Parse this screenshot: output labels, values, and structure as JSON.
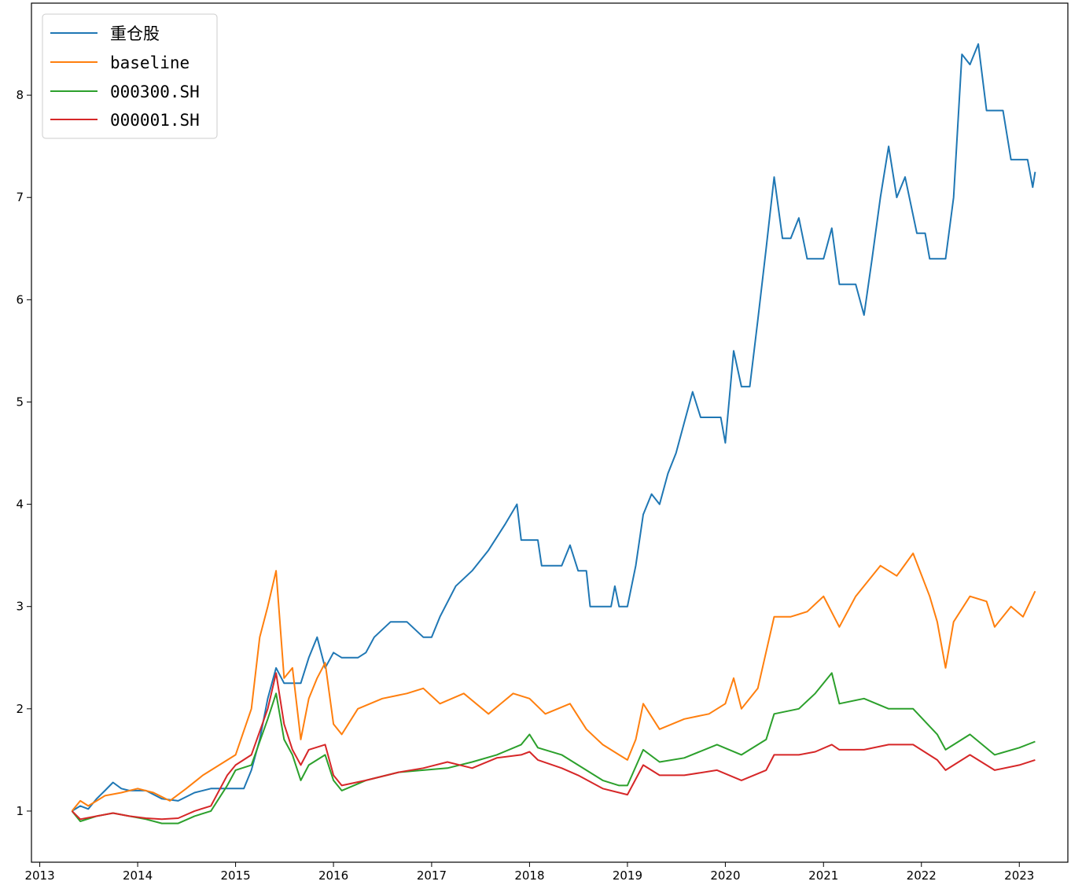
{
  "chart_data": {
    "type": "line",
    "title": "",
    "xlabel": "",
    "ylabel": "",
    "x_axis": {
      "type": "date",
      "range": [
        "2012-12-01",
        "2023-07-01"
      ],
      "ticks": [
        "2013",
        "2014",
        "2015",
        "2016",
        "2017",
        "2018",
        "2019",
        "2020",
        "2021",
        "2022",
        "2023"
      ]
    },
    "y_axis": {
      "range": [
        0.5,
        8.9
      ],
      "ticks": [
        1,
        2,
        3,
        4,
        5,
        6,
        7,
        8
      ]
    },
    "grid": false,
    "legend_position": "top-left",
    "series": [
      {
        "name": "重仓股",
        "color": "#1f77b4",
        "points": [
          [
            "2013-05-01",
            1.0
          ],
          [
            "2013-06-01",
            1.05
          ],
          [
            "2013-07-01",
            1.02
          ],
          [
            "2013-08-01",
            1.12
          ],
          [
            "2013-09-01",
            1.2
          ],
          [
            "2013-10-01",
            1.28
          ],
          [
            "2013-11-01",
            1.22
          ],
          [
            "2013-12-01",
            1.2
          ],
          [
            "2014-02-01",
            1.2
          ],
          [
            "2014-04-01",
            1.12
          ],
          [
            "2014-06-01",
            1.1
          ],
          [
            "2014-08-01",
            1.18
          ],
          [
            "2014-10-01",
            1.22
          ],
          [
            "2014-12-01",
            1.22
          ],
          [
            "2015-01-01",
            1.22
          ],
          [
            "2015-02-01",
            1.22
          ],
          [
            "2015-03-01",
            1.4
          ],
          [
            "2015-04-01",
            1.7
          ],
          [
            "2015-05-01",
            2.1
          ],
          [
            "2015-06-01",
            2.4
          ],
          [
            "2015-07-01",
            2.25
          ],
          [
            "2015-09-01",
            2.25
          ],
          [
            "2015-10-01",
            2.5
          ],
          [
            "2015-11-01",
            2.7
          ],
          [
            "2015-12-01",
            2.4
          ],
          [
            "2016-01-01",
            2.55
          ],
          [
            "2016-02-01",
            2.5
          ],
          [
            "2016-04-01",
            2.5
          ],
          [
            "2016-05-01",
            2.55
          ],
          [
            "2016-06-01",
            2.7
          ],
          [
            "2016-08-01",
            2.85
          ],
          [
            "2016-10-01",
            2.85
          ],
          [
            "2016-12-01",
            2.7
          ],
          [
            "2017-01-01",
            2.7
          ],
          [
            "2017-02-01",
            2.9
          ],
          [
            "2017-04-01",
            3.2
          ],
          [
            "2017-06-01",
            3.35
          ],
          [
            "2017-08-01",
            3.55
          ],
          [
            "2017-10-01",
            3.8
          ],
          [
            "2017-11-15",
            4.0
          ],
          [
            "2017-12-01",
            3.65
          ],
          [
            "2018-02-01",
            3.65
          ],
          [
            "2018-02-15",
            3.4
          ],
          [
            "2018-05-01",
            3.4
          ],
          [
            "2018-06-01",
            3.6
          ],
          [
            "2018-07-01",
            3.35
          ],
          [
            "2018-08-01",
            3.35
          ],
          [
            "2018-08-15",
            3.0
          ],
          [
            "2018-11-01",
            3.0
          ],
          [
            "2018-11-15",
            3.2
          ],
          [
            "2018-12-01",
            3.0
          ],
          [
            "2019-01-01",
            3.0
          ],
          [
            "2019-02-01",
            3.4
          ],
          [
            "2019-03-01",
            3.9
          ],
          [
            "2019-04-01",
            4.1
          ],
          [
            "2019-05-01",
            4.0
          ],
          [
            "2019-06-01",
            4.3
          ],
          [
            "2019-07-01",
            4.5
          ],
          [
            "2019-08-01",
            4.8
          ],
          [
            "2019-09-01",
            5.1
          ],
          [
            "2019-10-01",
            4.85
          ],
          [
            "2019-12-15",
            4.85
          ],
          [
            "2020-01-01",
            4.6
          ],
          [
            "2020-02-01",
            5.5
          ],
          [
            "2020-03-01",
            5.15
          ],
          [
            "2020-04-01",
            5.15
          ],
          [
            "2020-05-01",
            5.8
          ],
          [
            "2020-06-01",
            6.5
          ],
          [
            "2020-07-01",
            7.2
          ],
          [
            "2020-08-01",
            6.6
          ],
          [
            "2020-09-01",
            6.6
          ],
          [
            "2020-10-01",
            6.8
          ],
          [
            "2020-11-01",
            6.4
          ],
          [
            "2021-01-01",
            6.4
          ],
          [
            "2021-02-01",
            6.7
          ],
          [
            "2021-03-01",
            6.15
          ],
          [
            "2021-05-01",
            6.15
          ],
          [
            "2021-06-01",
            5.85
          ],
          [
            "2021-07-01",
            6.4
          ],
          [
            "2021-08-01",
            7.0
          ],
          [
            "2021-09-01",
            7.5
          ],
          [
            "2021-10-01",
            7.0
          ],
          [
            "2021-11-01",
            7.2
          ],
          [
            "2021-12-15",
            6.65
          ],
          [
            "2022-01-15",
            6.65
          ],
          [
            "2022-02-01",
            6.4
          ],
          [
            "2022-04-01",
            6.4
          ],
          [
            "2022-05-01",
            7.0
          ],
          [
            "2022-06-01",
            8.4
          ],
          [
            "2022-07-01",
            8.3
          ],
          [
            "2022-08-01",
            8.5
          ],
          [
            "2022-09-01",
            7.85
          ],
          [
            "2022-11-01",
            7.85
          ],
          [
            "2022-12-01",
            7.37
          ],
          [
            "2023-02-01",
            7.37
          ],
          [
            "2023-02-20",
            7.1
          ],
          [
            "2023-03-01",
            7.25
          ]
        ]
      },
      {
        "name": "baseline",
        "color": "#ff7f0e",
        "points": [
          [
            "2013-05-01",
            1.0
          ],
          [
            "2013-06-01",
            1.1
          ],
          [
            "2013-07-01",
            1.05
          ],
          [
            "2013-09-01",
            1.15
          ],
          [
            "2013-11-01",
            1.18
          ],
          [
            "2014-01-01",
            1.22
          ],
          [
            "2014-03-01",
            1.18
          ],
          [
            "2014-05-01",
            1.1
          ],
          [
            "2014-07-01",
            1.22
          ],
          [
            "2014-09-01",
            1.35
          ],
          [
            "2014-11-01",
            1.45
          ],
          [
            "2015-01-01",
            1.55
          ],
          [
            "2015-03-01",
            2.0
          ],
          [
            "2015-04-01",
            2.7
          ],
          [
            "2015-05-01",
            3.0
          ],
          [
            "2015-06-01",
            3.35
          ],
          [
            "2015-07-01",
            2.3
          ],
          [
            "2015-08-01",
            2.4
          ],
          [
            "2015-09-01",
            1.7
          ],
          [
            "2015-10-01",
            2.1
          ],
          [
            "2015-11-01",
            2.3
          ],
          [
            "2015-12-01",
            2.45
          ],
          [
            "2016-01-01",
            1.85
          ],
          [
            "2016-02-01",
            1.75
          ],
          [
            "2016-04-01",
            2.0
          ],
          [
            "2016-07-01",
            2.1
          ],
          [
            "2016-10-01",
            2.15
          ],
          [
            "2016-12-01",
            2.2
          ],
          [
            "2017-02-01",
            2.05
          ],
          [
            "2017-05-01",
            2.15
          ],
          [
            "2017-08-01",
            1.95
          ],
          [
            "2017-11-01",
            2.15
          ],
          [
            "2018-01-01",
            2.1
          ],
          [
            "2018-03-01",
            1.95
          ],
          [
            "2018-06-01",
            2.05
          ],
          [
            "2018-08-01",
            1.8
          ],
          [
            "2018-10-01",
            1.65
          ],
          [
            "2018-12-01",
            1.55
          ],
          [
            "2019-01-01",
            1.5
          ],
          [
            "2019-02-01",
            1.7
          ],
          [
            "2019-03-01",
            2.05
          ],
          [
            "2019-05-01",
            1.8
          ],
          [
            "2019-08-01",
            1.9
          ],
          [
            "2019-11-01",
            1.95
          ],
          [
            "2020-01-01",
            2.05
          ],
          [
            "2020-02-01",
            2.3
          ],
          [
            "2020-03-01",
            2.0
          ],
          [
            "2020-05-01",
            2.2
          ],
          [
            "2020-07-01",
            2.9
          ],
          [
            "2020-09-01",
            2.9
          ],
          [
            "2020-11-01",
            2.95
          ],
          [
            "2021-01-01",
            3.1
          ],
          [
            "2021-03-01",
            2.8
          ],
          [
            "2021-05-01",
            3.1
          ],
          [
            "2021-08-01",
            3.4
          ],
          [
            "2021-10-01",
            3.3
          ],
          [
            "2021-12-01",
            3.52
          ],
          [
            "2022-02-01",
            3.1
          ],
          [
            "2022-03-01",
            2.85
          ],
          [
            "2022-04-01",
            2.4
          ],
          [
            "2022-05-01",
            2.85
          ],
          [
            "2022-07-01",
            3.1
          ],
          [
            "2022-09-01",
            3.05
          ],
          [
            "2022-10-01",
            2.8
          ],
          [
            "2022-12-01",
            3.0
          ],
          [
            "2023-01-15",
            2.9
          ],
          [
            "2023-03-01",
            3.15
          ]
        ]
      },
      {
        "name": "000300.SH",
        "color": "#2ca02c",
        "points": [
          [
            "2013-05-01",
            1.0
          ],
          [
            "2013-06-01",
            0.9
          ],
          [
            "2013-08-01",
            0.95
          ],
          [
            "2013-10-01",
            0.98
          ],
          [
            "2013-12-01",
            0.95
          ],
          [
            "2014-02-01",
            0.92
          ],
          [
            "2014-04-01",
            0.88
          ],
          [
            "2014-06-01",
            0.88
          ],
          [
            "2014-08-01",
            0.95
          ],
          [
            "2014-10-01",
            1.0
          ],
          [
            "2014-12-01",
            1.25
          ],
          [
            "2015-01-01",
            1.4
          ],
          [
            "2015-03-01",
            1.45
          ],
          [
            "2015-05-01",
            1.9
          ],
          [
            "2015-06-01",
            2.15
          ],
          [
            "2015-07-01",
            1.7
          ],
          [
            "2015-08-01",
            1.55
          ],
          [
            "2015-09-01",
            1.3
          ],
          [
            "2015-10-01",
            1.45
          ],
          [
            "2015-12-01",
            1.55
          ],
          [
            "2016-01-01",
            1.3
          ],
          [
            "2016-02-01",
            1.2
          ],
          [
            "2016-05-01",
            1.3
          ],
          [
            "2016-09-01",
            1.38
          ],
          [
            "2016-12-01",
            1.4
          ],
          [
            "2017-03-01",
            1.42
          ],
          [
            "2017-06-01",
            1.48
          ],
          [
            "2017-09-01",
            1.55
          ],
          [
            "2017-12-01",
            1.65
          ],
          [
            "2018-01-01",
            1.75
          ],
          [
            "2018-02-01",
            1.62
          ],
          [
            "2018-05-01",
            1.55
          ],
          [
            "2018-07-01",
            1.45
          ],
          [
            "2018-10-01",
            1.3
          ],
          [
            "2018-12-01",
            1.25
          ],
          [
            "2019-01-01",
            1.25
          ],
          [
            "2019-03-01",
            1.6
          ],
          [
            "2019-05-01",
            1.48
          ],
          [
            "2019-08-01",
            1.52
          ],
          [
            "2019-12-01",
            1.65
          ],
          [
            "2020-03-01",
            1.55
          ],
          [
            "2020-06-01",
            1.7
          ],
          [
            "2020-07-01",
            1.95
          ],
          [
            "2020-10-01",
            2.0
          ],
          [
            "2020-12-01",
            2.15
          ],
          [
            "2021-02-01",
            2.35
          ],
          [
            "2021-03-01",
            2.05
          ],
          [
            "2021-06-01",
            2.1
          ],
          [
            "2021-09-01",
            2.0
          ],
          [
            "2021-12-01",
            2.0
          ],
          [
            "2022-03-01",
            1.75
          ],
          [
            "2022-04-01",
            1.6
          ],
          [
            "2022-07-01",
            1.75
          ],
          [
            "2022-10-01",
            1.55
          ],
          [
            "2023-01-01",
            1.62
          ],
          [
            "2023-03-01",
            1.68
          ]
        ]
      },
      {
        "name": "000001.SH",
        "color": "#d62728",
        "points": [
          [
            "2013-05-01",
            1.0
          ],
          [
            "2013-06-01",
            0.92
          ],
          [
            "2013-08-01",
            0.95
          ],
          [
            "2013-10-01",
            0.98
          ],
          [
            "2013-12-01",
            0.95
          ],
          [
            "2014-02-01",
            0.93
          ],
          [
            "2014-04-01",
            0.92
          ],
          [
            "2014-06-01",
            0.93
          ],
          [
            "2014-08-01",
            1.0
          ],
          [
            "2014-10-01",
            1.05
          ],
          [
            "2014-12-01",
            1.35
          ],
          [
            "2015-01-01",
            1.45
          ],
          [
            "2015-03-01",
            1.55
          ],
          [
            "2015-05-01",
            2.0
          ],
          [
            "2015-06-01",
            2.35
          ],
          [
            "2015-07-01",
            1.85
          ],
          [
            "2015-08-01",
            1.6
          ],
          [
            "2015-09-01",
            1.45
          ],
          [
            "2015-10-01",
            1.6
          ],
          [
            "2015-12-01",
            1.65
          ],
          [
            "2016-01-01",
            1.35
          ],
          [
            "2016-02-01",
            1.25
          ],
          [
            "2016-05-01",
            1.3
          ],
          [
            "2016-09-01",
            1.38
          ],
          [
            "2016-12-01",
            1.42
          ],
          [
            "2017-03-01",
            1.48
          ],
          [
            "2017-06-01",
            1.42
          ],
          [
            "2017-09-01",
            1.52
          ],
          [
            "2017-12-01",
            1.55
          ],
          [
            "2018-01-01",
            1.58
          ],
          [
            "2018-02-01",
            1.5
          ],
          [
            "2018-05-01",
            1.42
          ],
          [
            "2018-07-01",
            1.35
          ],
          [
            "2018-10-01",
            1.22
          ],
          [
            "2018-12-01",
            1.18
          ],
          [
            "2019-01-01",
            1.16
          ],
          [
            "2019-03-01",
            1.45
          ],
          [
            "2019-05-01",
            1.35
          ],
          [
            "2019-08-01",
            1.35
          ],
          [
            "2019-12-01",
            1.4
          ],
          [
            "2020-03-01",
            1.3
          ],
          [
            "2020-06-01",
            1.4
          ],
          [
            "2020-07-01",
            1.55
          ],
          [
            "2020-10-01",
            1.55
          ],
          [
            "2020-12-01",
            1.58
          ],
          [
            "2021-02-01",
            1.65
          ],
          [
            "2021-03-01",
            1.6
          ],
          [
            "2021-06-01",
            1.6
          ],
          [
            "2021-09-01",
            1.65
          ],
          [
            "2021-12-01",
            1.65
          ],
          [
            "2022-03-01",
            1.5
          ],
          [
            "2022-04-01",
            1.4
          ],
          [
            "2022-07-01",
            1.55
          ],
          [
            "2022-10-01",
            1.4
          ],
          [
            "2023-01-01",
            1.45
          ],
          [
            "2023-03-01",
            1.5
          ]
        ]
      }
    ]
  }
}
